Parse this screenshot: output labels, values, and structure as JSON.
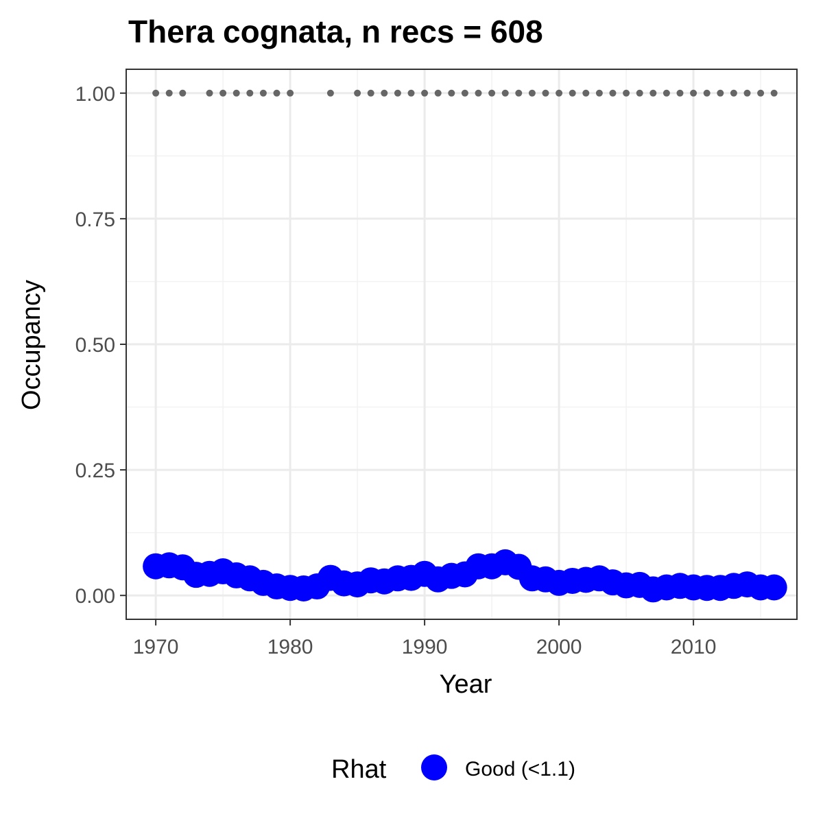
{
  "chart_data": {
    "type": "scatter",
    "title": "Thera cognata, n recs = 608",
    "xlabel": "Year",
    "ylabel": "Occupancy",
    "xlim": [
      1967.8,
      2017.7
    ],
    "ylim": [
      -0.0475,
      1.0475
    ],
    "x_ticks": [
      1970,
      1980,
      1990,
      2000,
      2010
    ],
    "x_tick_labels": [
      "1970",
      "1980",
      "1990",
      "2000",
      "2010"
    ],
    "y_ticks": [
      0,
      0.25,
      0.5,
      0.75,
      1.0
    ],
    "y_tick_labels": [
      "0.00",
      "0.25",
      "0.50",
      "0.75",
      "1.00"
    ],
    "grid": true,
    "legend": {
      "position": "bottom",
      "title": "Rhat",
      "entries": [
        {
          "label": "Good (<1.1)",
          "color": "#0000ff"
        }
      ]
    },
    "series": [
      {
        "name": "Good (<1.1)",
        "color": "#0000ff",
        "x": [
          1970,
          1971,
          1972,
          1973,
          1974,
          1975,
          1976,
          1977,
          1978,
          1979,
          1980,
          1981,
          1982,
          1983,
          1984,
          1985,
          1986,
          1987,
          1988,
          1989,
          1990,
          1991,
          1992,
          1993,
          1994,
          1995,
          1996,
          1997,
          1998,
          1999,
          2000,
          2001,
          2002,
          2003,
          2004,
          2005,
          2006,
          2007,
          2008,
          2009,
          2010,
          2011,
          2012,
          2013,
          2014,
          2015,
          2016
        ],
        "values": [
          0.058,
          0.06,
          0.056,
          0.041,
          0.043,
          0.048,
          0.04,
          0.034,
          0.025,
          0.018,
          0.015,
          0.014,
          0.018,
          0.035,
          0.024,
          0.022,
          0.03,
          0.028,
          0.034,
          0.035,
          0.043,
          0.032,
          0.039,
          0.042,
          0.058,
          0.058,
          0.066,
          0.057,
          0.034,
          0.032,
          0.025,
          0.029,
          0.031,
          0.034,
          0.026,
          0.02,
          0.021,
          0.012,
          0.016,
          0.019,
          0.016,
          0.015,
          0.015,
          0.019,
          0.022,
          0.016,
          0.016
        ]
      }
    ],
    "records": {
      "color": "#666666",
      "y": 1.0,
      "x": [
        1970,
        1971,
        1972,
        1974,
        1975,
        1976,
        1977,
        1978,
        1979,
        1980,
        1983,
        1985,
        1986,
        1987,
        1988,
        1989,
        1990,
        1991,
        1992,
        1993,
        1994,
        1995,
        1996,
        1997,
        1998,
        1999,
        2000,
        2001,
        2002,
        2003,
        2004,
        2005,
        2006,
        2007,
        2008,
        2009,
        2010,
        2011,
        2012,
        2013,
        2014,
        2015,
        2016
      ]
    }
  }
}
